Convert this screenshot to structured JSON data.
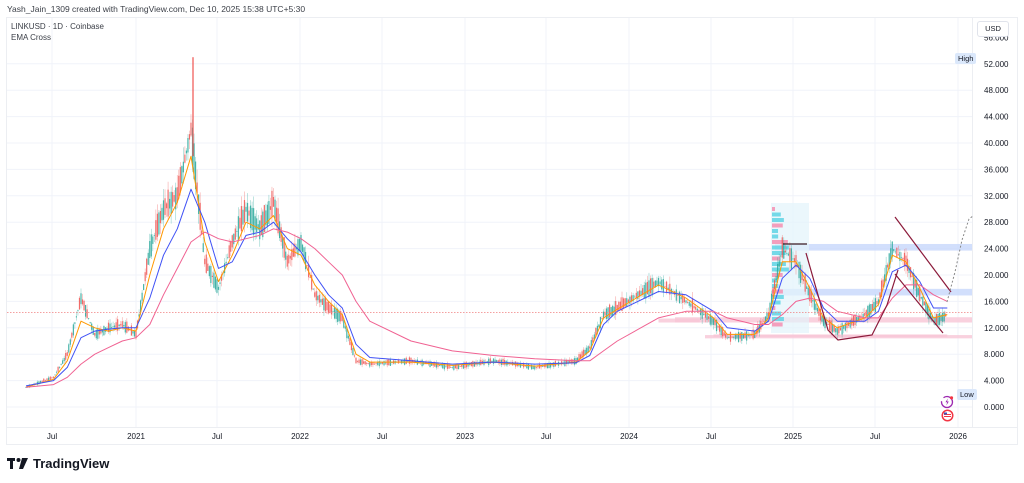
{
  "header": {
    "credit": "Yash_Jain_1309 created with TradingView.com, Dec 10, 2025 15:38 UTC+5:30"
  },
  "legend": {
    "symbol_line": "LINKUSD · 1D · Coinbase",
    "indicator": "EMA Cross"
  },
  "price_scale": {
    "currency_button": "USD",
    "high_tag": "High",
    "low_tag": "Low"
  },
  "brand": {
    "name": "TradingView"
  },
  "colors": {
    "up_candle": "#26a69a",
    "down_candle": "#ef5350",
    "ema_fast": "#ff9800",
    "ema_mid": "#3f51f5",
    "ema_slow": "#f06292",
    "zone_blue": "#c7d7fb",
    "zone_pink": "#f8c6d6",
    "pattern_line": "#8b1a3a",
    "last_price_line": "#f08080"
  },
  "chart_data": {
    "type": "line",
    "title": "LINKUSD · 1D · Coinbase",
    "subtitle": "EMA Cross",
    "xlabel": "",
    "ylabel": "USD",
    "ylim": [
      0,
      54
    ],
    "grid": true,
    "y_ticks": [
      "0.000",
      "4.000",
      "8.000",
      "12.000",
      "16.000",
      "20.000",
      "24.000",
      "28.000",
      "32.000",
      "36.000",
      "40.000",
      "44.000",
      "48.000",
      "52.000"
    ],
    "x_ticks": [
      "Jul",
      "2021",
      "Jul",
      "2022",
      "Jul",
      "2023",
      "Jul",
      "2024",
      "Jul",
      "2025",
      "Jul",
      "2026"
    ],
    "annotations": [
      "High",
      "Low"
    ],
    "x": [
      "2020-05",
      "2020-07",
      "2020-08",
      "2020-09",
      "2020-10",
      "2020-11",
      "2020-12",
      "2021-01",
      "2021-02",
      "2021-03",
      "2021-04",
      "2021-05",
      "2021-06",
      "2021-07",
      "2021-08",
      "2021-09",
      "2021-10",
      "2021-11",
      "2021-12",
      "2022-01",
      "2022-02",
      "2022-03",
      "2022-04",
      "2022-05",
      "2022-06",
      "2022-09",
      "2022-12",
      "2023-03",
      "2023-06",
      "2023-09",
      "2023-10",
      "2023-11",
      "2023-12",
      "2024-03",
      "2024-05",
      "2024-07",
      "2024-08",
      "2024-10",
      "2024-11",
      "2024-12",
      "2025-01",
      "2025-02",
      "2025-03",
      "2025-04",
      "2025-06",
      "2025-07",
      "2025-08",
      "2025-09",
      "2025-10",
      "2025-11",
      "2025-12"
    ],
    "series": [
      {
        "name": "Price (approx close)",
        "values": [
          3.0,
          4.5,
          8.0,
          16.5,
          11.0,
          12.0,
          12.5,
          11.0,
          24.0,
          30.0,
          32.0,
          42.0,
          22.0,
          18.0,
          25.0,
          30.0,
          27.0,
          31.0,
          22.0,
          25.0,
          17.0,
          15.0,
          13.5,
          7.0,
          6.5,
          7.0,
          6.0,
          7.0,
          6.0,
          7.0,
          9.0,
          14.0,
          15.0,
          19.0,
          16.0,
          13.0,
          10.5,
          11.0,
          14.0,
          24.0,
          22.0,
          17.0,
          13.0,
          11.5,
          14.0,
          16.0,
          24.0,
          22.0,
          17.0,
          13.0,
          14.0
        ]
      },
      {
        "name": "EMA fast (orange)",
        "values": [
          3.0,
          4.2,
          7.0,
          13.0,
          12.0,
          11.5,
          12.0,
          11.5,
          20.0,
          27.0,
          31.0,
          38.0,
          25.0,
          19.0,
          23.0,
          28.0,
          27.0,
          29.0,
          24.0,
          23.0,
          18.5,
          16.0,
          14.0,
          8.0,
          6.8,
          6.8,
          6.3,
          6.8,
          6.2,
          6.8,
          8.5,
          13.5,
          14.8,
          18.5,
          16.5,
          13.5,
          11.0,
          11.0,
          13.5,
          22.0,
          22.0,
          18.0,
          13.5,
          12.0,
          13.5,
          15.5,
          23.0,
          22.0,
          18.0,
          13.5,
          14.0
        ]
      },
      {
        "name": "EMA mid (blue)",
        "values": [
          3.2,
          4.0,
          6.0,
          10.5,
          11.5,
          11.8,
          12.0,
          12.0,
          16.5,
          23.0,
          27.0,
          33.0,
          28.0,
          21.0,
          22.0,
          26.0,
          26.5,
          28.0,
          25.5,
          23.5,
          20.0,
          17.0,
          15.0,
          9.5,
          7.5,
          7.0,
          6.5,
          6.8,
          6.5,
          6.7,
          7.8,
          12.5,
          14.5,
          17.5,
          17.0,
          14.5,
          12.0,
          11.5,
          13.0,
          19.5,
          21.5,
          19.5,
          15.0,
          13.0,
          13.0,
          14.5,
          20.5,
          21.5,
          19.0,
          15.0,
          15.0
        ]
      },
      {
        "name": "EMA slow (pink)",
        "values": [
          3.0,
          3.4,
          4.5,
          6.5,
          8.0,
          9.0,
          10.0,
          10.5,
          12.5,
          17.0,
          21.0,
          25.0,
          26.5,
          25.5,
          25.0,
          25.5,
          26.0,
          27.0,
          26.5,
          25.5,
          24.0,
          22.0,
          20.0,
          16.0,
          13.0,
          10.0,
          8.5,
          7.8,
          7.3,
          7.0,
          7.0,
          8.5,
          10.0,
          13.5,
          14.5,
          14.5,
          13.5,
          12.5,
          12.5,
          14.0,
          16.0,
          16.5,
          16.0,
          14.5,
          13.5,
          13.5,
          16.5,
          18.5,
          18.5,
          17.0,
          16.0
        ]
      }
    ],
    "horizontal_zones": [
      {
        "color": "blue",
        "from": 23.7,
        "to": 24.7
      },
      {
        "color": "blue",
        "from": 16.9,
        "to": 17.9
      },
      {
        "color": "pink",
        "from": 12.8,
        "to": 13.6
      },
      {
        "color": "pink",
        "from": 10.4,
        "to": 10.9
      },
      {
        "color": "pink",
        "from": 12.8,
        "to": 13.4,
        "range": "2024-03 to 2024-06"
      },
      {
        "color": "pink",
        "from": 10.6,
        "to": 11.0,
        "range": "2024-07 to 2025-12"
      }
    ],
    "last_price_line": 14.3
  }
}
